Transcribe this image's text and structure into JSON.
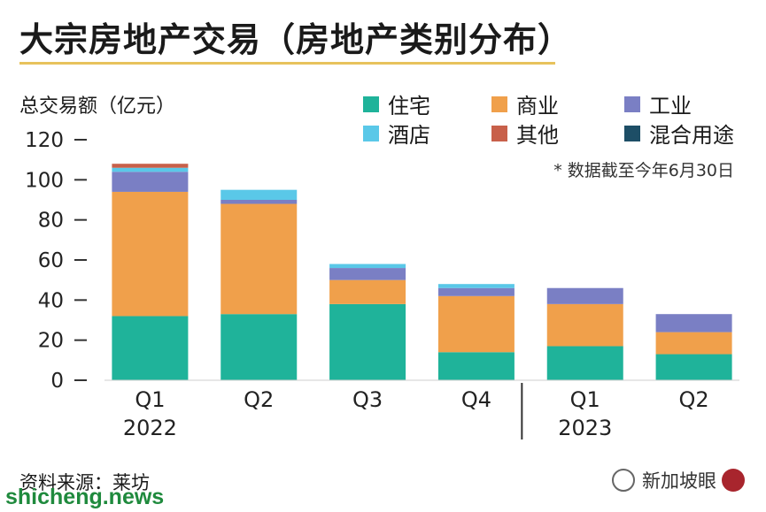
{
  "title": "大宗房地产交易（房地产类别分布）",
  "ylabel": "总交易额（亿元）",
  "note": "* 数据截至今年6月30日",
  "source": "资料来源：莱坊",
  "watermark_left": "shicheng.news",
  "watermark_right": "新加坡眼",
  "chart_data": {
    "type": "bar",
    "stacked": true,
    "categories": [
      "Q1",
      "Q2",
      "Q3",
      "Q4",
      "Q1",
      "Q2"
    ],
    "year_labels": [
      {
        "label": "2022",
        "under_index": 0
      },
      {
        "label": "2023",
        "under_index": 4
      }
    ],
    "ylim": [
      0,
      120
    ],
    "yticks": [
      0,
      20,
      40,
      60,
      80,
      100,
      120
    ],
    "legend_position": "top-right",
    "series": [
      {
        "name": "住宅",
        "color": "#1fb39a",
        "values": [
          32,
          33,
          38,
          14,
          17,
          13
        ]
      },
      {
        "name": "商业",
        "color": "#f0a04b",
        "values": [
          62,
          55,
          12,
          28,
          21,
          11
        ]
      },
      {
        "name": "工业",
        "color": "#7a7fc4",
        "values": [
          10,
          2,
          6,
          4,
          8,
          9
        ]
      },
      {
        "name": "酒店",
        "color": "#5ac8e8",
        "values": [
          2,
          5,
          2,
          2,
          0,
          0
        ]
      },
      {
        "name": "其他",
        "color": "#c8604a",
        "values": [
          2,
          0,
          0,
          0,
          0,
          0
        ]
      },
      {
        "name": "混合用途",
        "color": "#1d4e66",
        "values": [
          0,
          0,
          0,
          0,
          0,
          0
        ]
      }
    ]
  }
}
